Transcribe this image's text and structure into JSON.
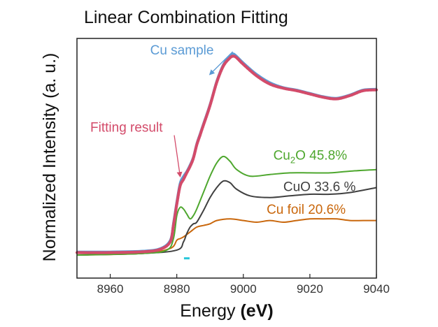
{
  "chart_data": {
    "type": "line",
    "title": "Linear Combination Fitting",
    "xlabel_prefix": "Energy ",
    "xlabel_unit": "(eV)",
    "ylabel": "Normalized Intensity (a. u.)",
    "xlim": [
      8950,
      9040
    ],
    "ylim": [
      0,
      1.35
    ],
    "xticks": [
      8960,
      8980,
      9000,
      9020,
      9040
    ],
    "xtick_labels": [
      "8960",
      "8980",
      "9000",
      "9020",
      "9040"
    ],
    "series": [
      {
        "name": "Cu sample",
        "color": "#5b9bd5",
        "style": "line",
        "x": [
          8950,
          8960,
          8970,
          8975,
          8978,
          8979,
          8980,
          8981,
          8982,
          8983,
          8984,
          8985,
          8986,
          8987,
          8988,
          8990,
          8992,
          8994,
          8996,
          8997,
          8998,
          9000,
          9004,
          9008,
          9012,
          9016,
          9020,
          9024,
          9028,
          9032,
          9036,
          9040
        ],
        "y": [
          0.02,
          0.02,
          0.025,
          0.04,
          0.09,
          0.2,
          0.33,
          0.44,
          0.48,
          0.51,
          0.55,
          0.6,
          0.68,
          0.74,
          0.8,
          0.92,
          1.06,
          1.16,
          1.215,
          1.225,
          1.21,
          1.17,
          1.1,
          1.05,
          1.02,
          1.005,
          0.985,
          0.965,
          0.955,
          0.975,
          1.005,
          1.01
        ]
      },
      {
        "name": "Fitting result",
        "color": "#d34b6a",
        "style": "dots",
        "x": [
          8950,
          8960,
          8970,
          8975,
          8978,
          8979,
          8980,
          8981,
          8982,
          8983,
          8984,
          8985,
          8986,
          8987,
          8988,
          8990,
          8992,
          8994,
          8996,
          8997,
          8998,
          9000,
          9004,
          9008,
          9012,
          9016,
          9020,
          9024,
          9028,
          9032,
          9036,
          9040
        ],
        "y": [
          0.015,
          0.015,
          0.02,
          0.035,
          0.08,
          0.18,
          0.31,
          0.42,
          0.46,
          0.5,
          0.54,
          0.59,
          0.67,
          0.73,
          0.79,
          0.91,
          1.05,
          1.15,
          1.2,
          1.21,
          1.2,
          1.16,
          1.09,
          1.04,
          1.015,
          1.0,
          0.98,
          0.96,
          0.95,
          0.97,
          1.0,
          1.005
        ]
      },
      {
        "name": "Cu2O 45.8%",
        "color": "#4ea72e",
        "style": "line",
        "x": [
          8950,
          8970,
          8977,
          8979,
          8980,
          8981,
          8982,
          8983,
          8984,
          8985,
          8986,
          8988,
          8990,
          8992,
          8994,
          8996,
          8998,
          9002,
          9008,
          9014,
          9020,
          9026,
          9032,
          9040
        ],
        "y": [
          0.0,
          0.01,
          0.03,
          0.1,
          0.24,
          0.29,
          0.28,
          0.25,
          0.22,
          0.24,
          0.28,
          0.38,
          0.48,
          0.56,
          0.6,
          0.57,
          0.52,
          0.48,
          0.49,
          0.5,
          0.5,
          0.5,
          0.51,
          0.52
        ]
      },
      {
        "name": "CuO 33.6 %",
        "color": "#404040",
        "style": "line",
        "x": [
          8950,
          8970,
          8980,
          8982,
          8983,
          8984,
          8985,
          8986,
          8988,
          8990,
          8992,
          8994,
          8996,
          8998,
          9002,
          9008,
          9014,
          9020,
          9026,
          9032,
          9040
        ],
        "y": [
          0.0,
          0.01,
          0.03,
          0.08,
          0.13,
          0.17,
          0.19,
          0.2,
          0.27,
          0.35,
          0.41,
          0.45,
          0.44,
          0.4,
          0.36,
          0.35,
          0.36,
          0.37,
          0.37,
          0.38,
          0.41
        ]
      },
      {
        "name": "Cu foil 20.6%",
        "color": "#c9670c",
        "style": "line",
        "x": [
          8950,
          8970,
          8978,
          8980,
          8981,
          8982,
          8984,
          8986,
          8988,
          8990,
          8992,
          8996,
          9000,
          9004,
          9008,
          9012,
          9016,
          9020,
          9024,
          9028,
          9032,
          9036,
          9040
        ],
        "y": [
          0.0,
          0.01,
          0.04,
          0.09,
          0.1,
          0.11,
          0.14,
          0.17,
          0.18,
          0.19,
          0.21,
          0.22,
          0.21,
          0.2,
          0.21,
          0.2,
          0.21,
          0.22,
          0.22,
          0.22,
          0.21,
          0.21,
          0.21
        ]
      }
    ],
    "annotations": [
      {
        "id": "cu-sample",
        "text": "Cu sample",
        "color": "#5b9bd5",
        "x": 8972,
        "y": 1.22,
        "arrow_to": [
          8990,
          1.1
        ]
      },
      {
        "id": "fitting-result",
        "text": "Fitting result",
        "color": "#d34b6a",
        "x": 8954,
        "y": 0.75,
        "arrow_to": [
          8981,
          0.48
        ]
      },
      {
        "id": "cu2o",
        "text_main": "Cu",
        "text_sub": "2",
        "text_tail": "O 45.8%",
        "color": "#4ea72e",
        "x": 9009,
        "y": 0.58
      },
      {
        "id": "cuo",
        "text": "CuO 33.6 %",
        "color": "#404040",
        "x": 9012,
        "y": 0.39
      },
      {
        "id": "cu-foil",
        "text": "Cu foil 20.6%",
        "color": "#c9670c",
        "x": 9007,
        "y": 0.25
      }
    ],
    "marker": {
      "color": "#26c6da",
      "x": 8983,
      "y": -0.02
    }
  }
}
